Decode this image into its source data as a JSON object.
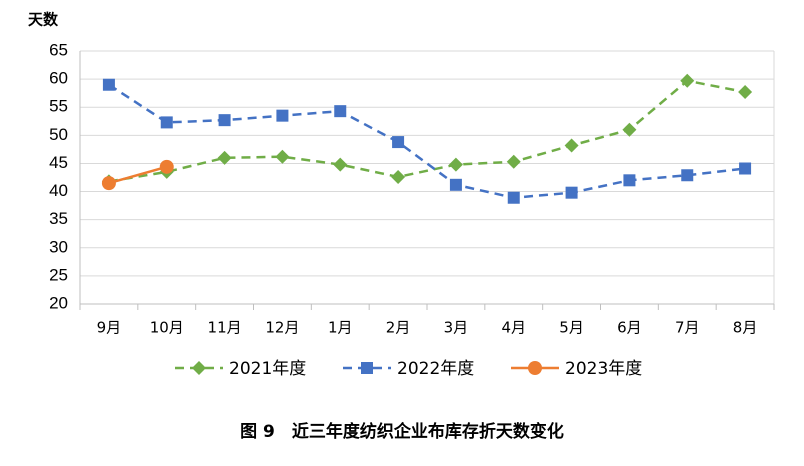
{
  "chart_data": {
    "type": "line",
    "title": "图 9　近三年度纺织企业布库存折天数变化",
    "y_label": "天数",
    "categories": [
      "9月",
      "10月",
      "11月",
      "12月",
      "1月",
      "2月",
      "3月",
      "4月",
      "5月",
      "6月",
      "7月",
      "8月"
    ],
    "series": [
      {
        "name": "2021年度",
        "color": "#70ad47",
        "dashed": true,
        "marker": "diamond",
        "values": [
          41.8,
          43.5,
          46,
          46.2,
          44.8,
          42.6,
          44.8,
          45.3,
          48.2,
          51,
          59.7,
          57.7
        ]
      },
      {
        "name": "2022年度",
        "color": "#4472c4",
        "dashed": true,
        "marker": "square",
        "values": [
          59,
          52.3,
          52.7,
          53.5,
          54.3,
          48.8,
          41.2,
          38.9,
          39.8,
          42,
          42.9,
          44.1
        ]
      },
      {
        "name": "2023年度",
        "color": "#ed7d31",
        "dashed": false,
        "marker": "circle",
        "values": [
          41.5,
          44.4,
          null,
          null,
          null,
          null,
          null,
          null,
          null,
          null,
          null,
          null
        ]
      }
    ],
    "ylim": [
      20,
      65
    ],
    "yticks": [
      20,
      25,
      30,
      35,
      40,
      45,
      50,
      55,
      60,
      65
    ],
    "grid": true
  }
}
